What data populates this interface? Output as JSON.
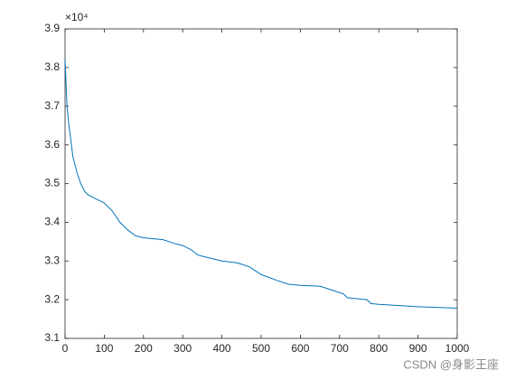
{
  "chart_data": {
    "type": "line",
    "exponent_label": "×10⁴",
    "x": [
      0,
      5,
      10,
      20,
      30,
      40,
      50,
      60,
      80,
      100,
      120,
      140,
      160,
      180,
      200,
      250,
      280,
      300,
      320,
      340,
      360,
      400,
      440,
      470,
      500,
      540,
      570,
      600,
      650,
      680,
      710,
      720,
      770,
      780,
      800,
      900,
      1000
    ],
    "series": [
      {
        "color": "#0072bd",
        "values": [
          3.82,
          3.7,
          3.65,
          3.57,
          3.53,
          3.5,
          3.48,
          3.47,
          3.46,
          3.45,
          3.43,
          3.4,
          3.38,
          3.365,
          3.36,
          3.355,
          3.345,
          3.34,
          3.33,
          3.315,
          3.31,
          3.3,
          3.295,
          3.285,
          3.265,
          3.25,
          3.24,
          3.237,
          3.235,
          3.225,
          3.215,
          3.205,
          3.2,
          3.19,
          3.188,
          3.182,
          3.178
        ]
      }
    ],
    "xlim": [
      0,
      1000
    ],
    "xticks": [
      0,
      100,
      200,
      300,
      400,
      500,
      600,
      700,
      800,
      900,
      1000
    ],
    "ylim": [
      3.1,
      3.9
    ],
    "yticks": [
      3.1,
      3.2,
      3.3,
      3.4,
      3.5,
      3.6,
      3.7,
      3.8,
      3.9
    ]
  },
  "watermark": "CSDN @身影王座"
}
